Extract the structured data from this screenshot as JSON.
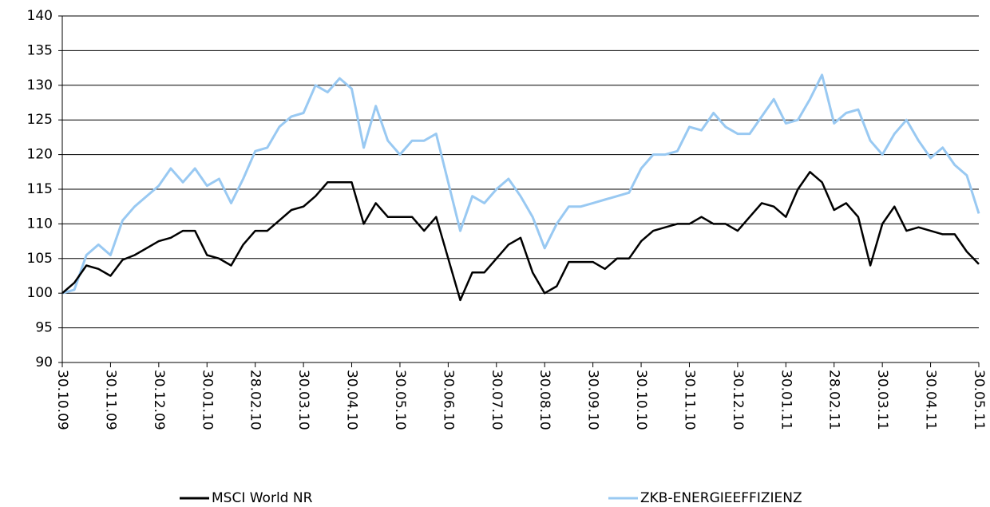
{
  "chart_data": {
    "type": "line",
    "categories": [
      "30.10.09",
      null,
      null,
      null,
      "30.11.09",
      null,
      null,
      null,
      "30.12.09",
      null,
      null,
      null,
      "30.01.10",
      null,
      null,
      null,
      "28.02.10",
      null,
      null,
      null,
      "30.03.10",
      null,
      null,
      null,
      "30.04.10",
      null,
      null,
      null,
      "30.05.10",
      null,
      null,
      null,
      "30.06.10",
      null,
      null,
      null,
      "30.07.10",
      null,
      null,
      null,
      "30.08.10",
      null,
      null,
      null,
      "30.09.10",
      null,
      null,
      null,
      "30.10.10",
      null,
      null,
      null,
      "30.11.10",
      null,
      null,
      null,
      "30.12.10",
      null,
      null,
      null,
      "30.01.11",
      null,
      null,
      null,
      "28.02.11",
      null,
      null,
      null,
      "30.03.11",
      null,
      null,
      null,
      "30.04.11",
      null,
      null,
      null,
      "30.05.11"
    ],
    "series": [
      {
        "name": "MSCI World NR",
        "color": "#000000",
        "values": [
          100,
          101.5,
          104,
          103.5,
          102.5,
          104.8,
          105.5,
          106.5,
          107.5,
          108,
          109,
          109,
          105.5,
          105,
          104,
          107,
          109,
          109,
          110.5,
          112,
          112.5,
          114,
          116,
          116,
          116,
          110,
          113,
          111,
          111,
          111,
          109,
          111,
          105,
          99,
          103,
          103,
          105,
          107,
          108,
          103,
          100,
          101,
          104.5,
          104.5,
          104.5,
          103.5,
          105,
          105,
          107.5,
          109,
          109.5,
          110,
          110,
          111,
          110,
          110,
          109,
          111,
          113,
          112.5,
          111,
          115,
          117.5,
          116,
          112,
          113,
          111,
          104,
          110,
          112.5,
          109,
          109.5,
          109,
          108.5,
          108.5,
          106,
          104.2
        ]
      },
      {
        "name": "ZKB-ENERGIEEFFIZIENZ",
        "color": "#99c9f2",
        "values": [
          100,
          100.5,
          105.5,
          107,
          105.5,
          110.5,
          112.5,
          114,
          115.5,
          118,
          116,
          118,
          115.5,
          116.5,
          113,
          116.5,
          120.5,
          121,
          124,
          125.5,
          126,
          130,
          129,
          131,
          129.5,
          121,
          127,
          122,
          120,
          122,
          122,
          123,
          116,
          109,
          114,
          113,
          115,
          116.5,
          114,
          111,
          106.5,
          110,
          112.5,
          112.5,
          113,
          113.5,
          114,
          114.5,
          118,
          120,
          120,
          120.5,
          124,
          123.5,
          126,
          124,
          123,
          123,
          125.5,
          128,
          124.5,
          125,
          128,
          131.5,
          124.5,
          126,
          126.5,
          122,
          120,
          123,
          125,
          122,
          119.5,
          121,
          118.5,
          117,
          111.5
        ]
      }
    ],
    "ylim": [
      90,
      140
    ],
    "yticks": [
      90,
      95,
      100,
      105,
      110,
      115,
      120,
      125,
      130,
      135,
      140
    ],
    "grid": true
  }
}
